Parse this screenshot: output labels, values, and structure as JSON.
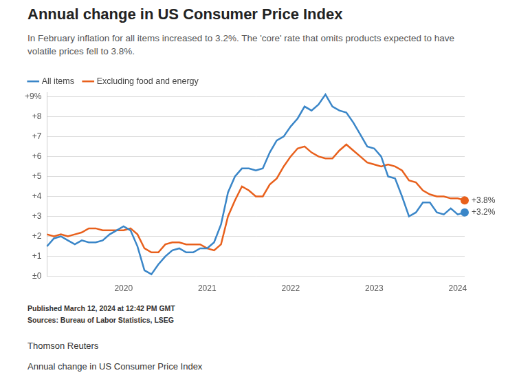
{
  "chart_data": {
    "type": "line",
    "title": "Annual change in US Consumer Price Index",
    "subtitle": "In February inflation for all items increased to 3.2%. The 'core' rate that omits products expected to have volatile prices fell to 3.8%.",
    "footer": [
      "Published March 12, 2024 at 12:42 PM GMT",
      "Sources: Bureau of Labor Statistics, LSEG"
    ],
    "caption": [
      "Thomson Reuters",
      "Annual change in US Consumer Price Index"
    ],
    "categories": [
      null,
      null,
      null,
      null,
      null,
      null,
      null,
      null,
      null,
      null,
      null,
      "2020",
      null,
      null,
      null,
      null,
      null,
      null,
      null,
      null,
      null,
      null,
      null,
      "2021",
      null,
      null,
      null,
      null,
      null,
      null,
      null,
      null,
      null,
      null,
      null,
      "2022",
      null,
      null,
      null,
      null,
      null,
      null,
      null,
      null,
      null,
      null,
      null,
      "2023",
      null,
      null,
      null,
      null,
      null,
      null,
      null,
      null,
      null,
      null,
      null,
      "2024",
      null
    ],
    "series": [
      {
        "name": "All items",
        "color": "#3a86c8",
        "values": [
          1.5,
          1.9,
          2.0,
          1.8,
          1.6,
          1.8,
          1.7,
          1.7,
          1.8,
          2.1,
          2.3,
          2.5,
          2.3,
          1.5,
          0.3,
          0.1,
          0.6,
          1.0,
          1.3,
          1.4,
          1.2,
          1.2,
          1.4,
          1.4,
          1.7,
          2.6,
          4.2,
          5.0,
          5.4,
          5.4,
          5.3,
          5.4,
          6.2,
          6.8,
          7.0,
          7.5,
          7.9,
          8.5,
          8.3,
          8.6,
          9.1,
          8.5,
          8.3,
          8.2,
          7.7,
          7.1,
          6.5,
          6.4,
          6.0,
          5.0,
          4.9,
          4.0,
          3.0,
          3.2,
          3.7,
          3.7,
          3.2,
          3.1,
          3.4,
          3.1,
          3.2
        ],
        "value_labels": [
          null,
          null,
          null,
          null,
          null,
          null,
          null,
          null,
          null,
          null,
          null,
          null,
          null,
          null,
          null,
          null,
          null,
          null,
          null,
          null,
          null,
          null,
          null,
          null,
          null,
          null,
          null,
          null,
          null,
          null,
          null,
          null,
          null,
          null,
          null,
          null,
          null,
          null,
          null,
          null,
          null,
          null,
          null,
          null,
          null,
          null,
          null,
          null,
          null,
          null,
          null,
          null,
          null,
          null,
          null,
          null,
          null,
          null,
          null,
          null,
          "+3.2%"
        ]
      },
      {
        "name": "Excluding food and energy",
        "color": "#e8601c",
        "values": [
          2.1,
          2.0,
          2.1,
          2.0,
          2.1,
          2.2,
          2.4,
          2.4,
          2.3,
          2.3,
          2.3,
          2.3,
          2.4,
          2.1,
          1.4,
          1.2,
          1.2,
          1.6,
          1.7,
          1.7,
          1.6,
          1.6,
          1.6,
          1.4,
          1.3,
          1.6,
          3.0,
          3.8,
          4.5,
          4.3,
          4.0,
          4.0,
          4.6,
          4.9,
          5.5,
          6.0,
          6.4,
          6.5,
          6.2,
          6.0,
          5.9,
          5.9,
          6.3,
          6.6,
          6.3,
          6.0,
          5.7,
          5.6,
          5.5,
          5.6,
          5.5,
          5.3,
          4.8,
          4.7,
          4.3,
          4.1,
          4.0,
          4.0,
          3.9,
          3.9,
          3.8
        ],
        "value_labels": [
          null,
          null,
          null,
          null,
          null,
          null,
          null,
          null,
          null,
          null,
          null,
          null,
          null,
          null,
          null,
          null,
          null,
          null,
          null,
          null,
          null,
          null,
          null,
          null,
          null,
          null,
          null,
          null,
          null,
          null,
          null,
          null,
          null,
          null,
          null,
          null,
          null,
          null,
          null,
          null,
          null,
          null,
          null,
          null,
          null,
          null,
          null,
          null,
          null,
          null,
          null,
          null,
          null,
          null,
          null,
          null,
          null,
          null,
          null,
          null,
          "+3.8%"
        ]
      }
    ],
    "ylim": [
      0,
      9.2
    ],
    "yticks": [
      {
        "value": 0,
        "label": "±0"
      },
      {
        "value": 1,
        "label": "+1"
      },
      {
        "value": 2,
        "label": "+2"
      },
      {
        "value": 3,
        "label": "+3"
      },
      {
        "value": 4,
        "label": "+4"
      },
      {
        "value": 5,
        "label": "+5"
      },
      {
        "value": 6,
        "label": "+6"
      },
      {
        "value": 7,
        "label": "+7"
      },
      {
        "value": 8,
        "label": "+8"
      },
      {
        "value": 9,
        "label": "+9%"
      }
    ],
    "grid": true,
    "legend": "top-left",
    "data_labels": true
  }
}
